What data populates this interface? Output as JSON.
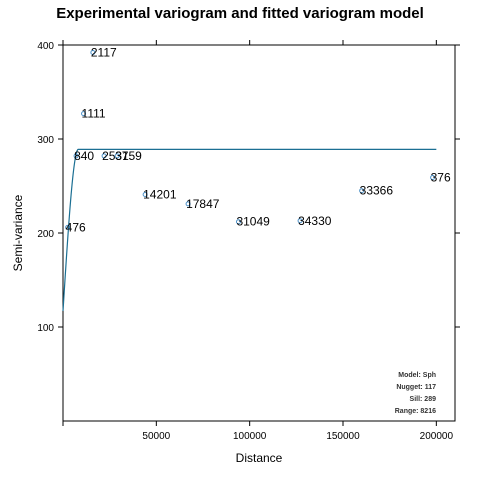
{
  "chart_data": {
    "type": "scatter",
    "title": "Experimental variogram and fitted variogram model",
    "xlabel": "Distance",
    "ylabel": "Semi-variance",
    "xlim": [
      0,
      210000
    ],
    "ylim": [
      0,
      400
    ],
    "x_ticks": [
      50000,
      100000,
      150000,
      200000
    ],
    "y_ticks": [
      100,
      200,
      300,
      400
    ],
    "points": [
      {
        "x": 2500,
        "y": 206,
        "label": "476"
      },
      {
        "x": 7000,
        "y": 282,
        "label": "840"
      },
      {
        "x": 11000,
        "y": 327,
        "label": "1111"
      },
      {
        "x": 16000,
        "y": 392,
        "label": "2117"
      },
      {
        "x": 22000,
        "y": 282,
        "label": "2531"
      },
      {
        "x": 29000,
        "y": 282,
        "label": "3759"
      },
      {
        "x": 44000,
        "y": 241,
        "label": "14201"
      },
      {
        "x": 67000,
        "y": 231,
        "label": "17847"
      },
      {
        "x": 94000,
        "y": 212,
        "label": "31049"
      },
      {
        "x": 127000,
        "y": 213,
        "label": "34330"
      },
      {
        "x": 160000,
        "y": 245,
        "label": "33366"
      },
      {
        "x": 198000,
        "y": 259,
        "label": "376"
      }
    ],
    "model": {
      "type": "spherical",
      "nugget": 117,
      "sill": 289,
      "range": 8216
    },
    "model_info": [
      "Model: Sph",
      "Nugget: 117",
      "Sill: 289",
      "Range: 8216"
    ],
    "colors": {
      "points": "#4a90c8",
      "model_line": "#1b6f93",
      "frame": "#000000"
    }
  }
}
